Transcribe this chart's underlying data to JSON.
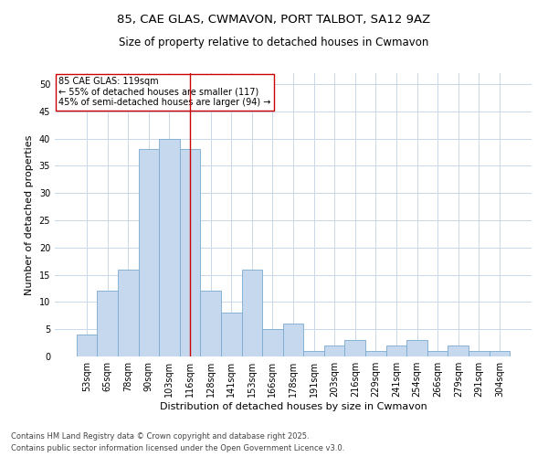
{
  "title_line1": "85, CAE GLAS, CWMAVON, PORT TALBOT, SA12 9AZ",
  "title_line2": "Size of property relative to detached houses in Cwmavon",
  "xlabel": "Distribution of detached houses by size in Cwmavon",
  "ylabel": "Number of detached properties",
  "categories": [
    "53sqm",
    "65sqm",
    "78sqm",
    "90sqm",
    "103sqm",
    "116sqm",
    "128sqm",
    "141sqm",
    "153sqm",
    "166sqm",
    "178sqm",
    "191sqm",
    "203sqm",
    "216sqm",
    "229sqm",
    "241sqm",
    "254sqm",
    "266sqm",
    "279sqm",
    "291sqm",
    "304sqm"
  ],
  "values": [
    4,
    12,
    16,
    38,
    40,
    38,
    12,
    8,
    16,
    5,
    6,
    1,
    2,
    3,
    1,
    2,
    3,
    1,
    2,
    1,
    1
  ],
  "bar_color": "#c5d8ee",
  "bar_edge_color": "#7aaad0",
  "vline_x_index": 5,
  "vline_color": "#cc0000",
  "annotation_text": "85 CAE GLAS: 119sqm\n← 55% of detached houses are smaller (117)\n45% of semi-detached houses are larger (94) →",
  "annotation_box_color": "#ffffff",
  "annotation_box_edge_color": "#cc0000",
  "ylim": [
    0,
    52
  ],
  "yticks": [
    0,
    5,
    10,
    15,
    20,
    25,
    30,
    35,
    40,
    45,
    50
  ],
  "background_color": "#ffffff",
  "grid_color": "#c8d8e8",
  "footer_line1": "Contains HM Land Registry data © Crown copyright and database right 2025.",
  "footer_line2": "Contains public sector information licensed under the Open Government Licence v3.0.",
  "title_fontsize": 9.5,
  "subtitle_fontsize": 8.5,
  "axis_label_fontsize": 8,
  "tick_fontsize": 7,
  "annotation_fontsize": 7,
  "footer_fontsize": 6
}
